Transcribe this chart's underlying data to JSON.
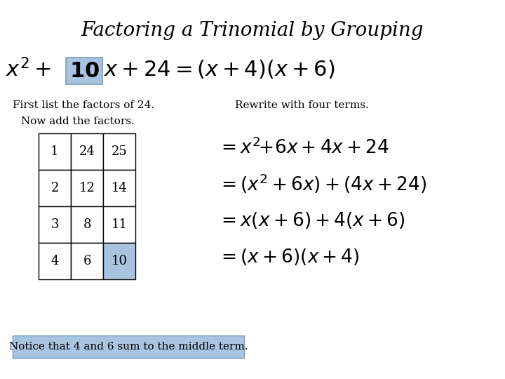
{
  "title": "Factoring a Trinomial by Grouping",
  "background_color": "#ffffff",
  "highlight_color": "#a8c4e0",
  "text_left1": "First list the factors of 24.",
  "text_left2": "Now add the factors.",
  "text_right": "Rewrite with four terms.",
  "table_data": [
    [
      1,
      24,
      25
    ],
    [
      2,
      12,
      14
    ],
    [
      3,
      8,
      11
    ],
    [
      4,
      6,
      10
    ]
  ],
  "notice_text": "Notice that 4 and 6 sum to the middle term.",
  "title_fontsize": 20,
  "body_fontsize": 11,
  "main_eq_fontsize": 22,
  "eq_fontsize": 19,
  "table_fontsize": 13
}
